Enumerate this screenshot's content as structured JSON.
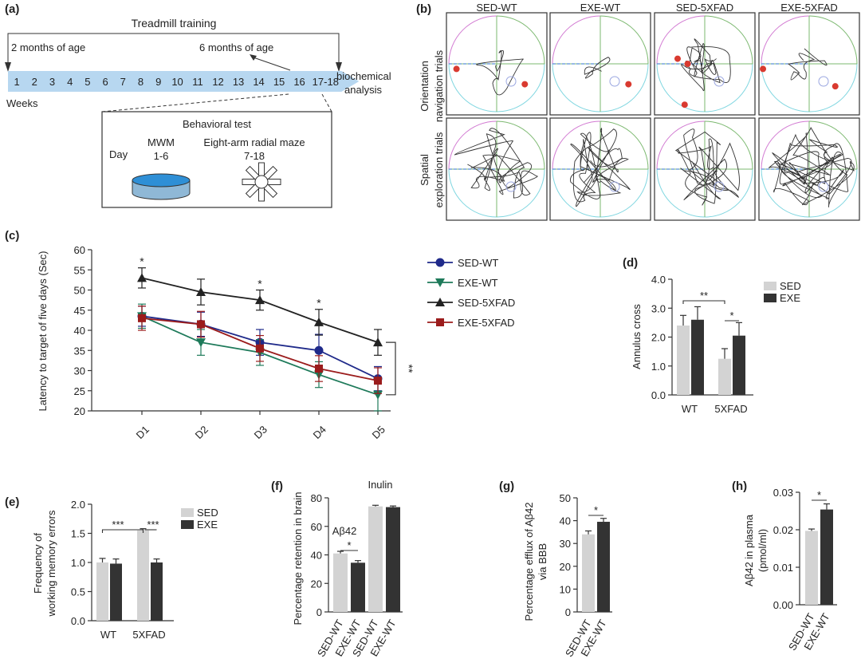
{
  "panel_a": {
    "label": "(a)",
    "title": "Treadmill training",
    "note_2m": "2 months of age",
    "note_6m": "6 months of age",
    "weeks": [
      "1",
      "2",
      "3",
      "4",
      "5",
      "6",
      "7",
      "8",
      "9",
      "10",
      "11",
      "12",
      "13",
      "14",
      "15",
      "16",
      "17-18"
    ],
    "weeks_label": "Weeks",
    "end_label_1": "biochemical",
    "end_label_2": "analysis",
    "box_title": "Behavioral test",
    "day_label": "Day",
    "mwm_label": "MWM",
    "mwm_days": "1-6",
    "maze_label": "Eight-arm radial maze",
    "maze_days": "7-18",
    "colors": {
      "week_fill": "#b7d7f0",
      "pool_water": "#2e8fd6"
    }
  },
  "panel_b": {
    "label": "(b)",
    "columns": [
      "SED-WT",
      "EXE-WT",
      "SED-5XFAD",
      "EXE-5XFAD"
    ],
    "rows": [
      {
        "line1": "Orientation",
        "line2": "navigation trials"
      },
      {
        "line1": "Spatial",
        "line2": "exploration trials"
      }
    ],
    "colors": {
      "dot": "#d93a30",
      "q1": "#7bb86f",
      "q2": "#d27ad2",
      "q3": "#7fd6e0",
      "trace": "#333333"
    }
  },
  "chart_data": [
    {
      "id": "c",
      "label": "(c)",
      "type": "line",
      "ylabel": "Latency to target of five days (Sec)",
      "categories": [
        "D1",
        "D2",
        "D3",
        "D4",
        "D5"
      ],
      "ylim": [
        20,
        60
      ],
      "yticks": [
        20,
        25,
        30,
        35,
        40,
        45,
        50,
        55,
        60
      ],
      "series": [
        {
          "name": "SED-WT",
          "color": "#1f2a8a",
          "marker": "circle",
          "values": [
            43.5,
            41.5,
            37,
            35,
            28
          ],
          "err": [
            2.5,
            3,
            3.2,
            4,
            3
          ]
        },
        {
          "name": "EXE-WT",
          "color": "#1e7a5a",
          "marker": "triangle-down",
          "values": [
            43.5,
            37,
            34.5,
            29,
            24
          ],
          "err": [
            3,
            3.2,
            3.2,
            3.2,
            4
          ]
        },
        {
          "name": "SED-5XFAD",
          "color": "#222222",
          "marker": "triangle-up",
          "values": [
            53,
            49.5,
            47.5,
            42,
            37
          ],
          "err": [
            2.5,
            3.2,
            2.5,
            3.2,
            3.2
          ]
        },
        {
          "name": "EXE-5XFAD",
          "color": "#9b1c1c",
          "marker": "square",
          "values": [
            43,
            41.5,
            35.5,
            30.5,
            27.5
          ],
          "err": [
            3,
            3.2,
            3.2,
            3.2,
            3.2
          ]
        }
      ],
      "annotations": [
        {
          "text": "*",
          "at": "D1"
        },
        {
          "text": "*",
          "at": "D3"
        },
        {
          "text": "*",
          "at": "D4"
        },
        {
          "text": "**",
          "at": "D5-bracket"
        }
      ],
      "legend": "top-right"
    },
    {
      "id": "d",
      "label": "(d)",
      "type": "bar",
      "ylabel": "Annulus cross",
      "categories": [
        "WT",
        "5XFAD"
      ],
      "ylim": [
        0,
        4
      ],
      "yticks": [
        "0.0",
        "1.0",
        "2.0",
        "3.0",
        "4.0"
      ],
      "series": [
        {
          "name": "SED",
          "color": "#d3d3d3",
          "values": [
            2.4,
            1.25
          ],
          "err": [
            0.35,
            0.35
          ]
        },
        {
          "name": "EXE",
          "color": "#333333",
          "values": [
            2.6,
            2.05
          ],
          "err": [
            0.45,
            0.45
          ]
        }
      ],
      "sig": [
        {
          "text": "**",
          "span": "WT-SED to 5XFAD-SED"
        },
        {
          "text": "*",
          "span": "5XFAD"
        }
      ],
      "legend": "top-right"
    },
    {
      "id": "e",
      "label": "(e)",
      "type": "bar",
      "ylabel_line1": "Frequency of",
      "ylabel_line2": "working memory errors",
      "categories": [
        "WT",
        "5XFAD"
      ],
      "ylim": [
        0,
        2
      ],
      "yticks": [
        "0.0",
        "0.5",
        "1.0",
        "1.5",
        "2.0"
      ],
      "series": [
        {
          "name": "SED",
          "color": "#d3d3d3",
          "values": [
            1.0,
            1.55
          ],
          "err": [
            0.07,
            0.03
          ]
        },
        {
          "name": "EXE",
          "color": "#333333",
          "values": [
            0.98,
            1.0
          ],
          "err": [
            0.08,
            0.06
          ]
        }
      ],
      "sig": [
        {
          "text": "***",
          "span": "WT-SED to 5XFAD-SED"
        },
        {
          "text": "***",
          "span": "5XFAD"
        }
      ],
      "legend": "top-right"
    },
    {
      "id": "f",
      "label": "(f)",
      "type": "bar",
      "ylabel": "Percentage retention in brain",
      "categories": [
        "SED-WT",
        "EXE-WT",
        "SED-WT",
        "EXE-WT"
      ],
      "groups": [
        "Aβ42",
        "Inulin"
      ],
      "ylim": [
        0,
        80
      ],
      "yticks": [
        "0",
        "20",
        "40",
        "60",
        "80"
      ],
      "values": [
        41,
        34.5,
        74,
        73.5
      ],
      "err": [
        1.5,
        1.5,
        0.8,
        0.8
      ],
      "colors": [
        "#d3d3d3",
        "#333333",
        "#d3d3d3",
        "#333333"
      ],
      "sig": [
        {
          "text": "*",
          "span": "Aβ42"
        }
      ]
    },
    {
      "id": "g",
      "label": "(g)",
      "type": "bar",
      "ylabel_line1": "Percentage efflux of Aβ42",
      "ylabel_line2": "via BBB",
      "categories": [
        "SED-WT",
        "EXE-WT"
      ],
      "ylim": [
        0,
        50
      ],
      "yticks": [
        "0",
        "10",
        "20",
        "30",
        "40",
        "50"
      ],
      "values": [
        34,
        39.5
      ],
      "err": [
        1.5,
        1.5
      ],
      "colors": [
        "#d3d3d3",
        "#333333"
      ],
      "sig": [
        {
          "text": "*"
        }
      ]
    },
    {
      "id": "h",
      "label": "(h)",
      "type": "bar",
      "ylabel_line1": "Aβ42 in plasma",
      "ylabel_line2": "(pmol/ml)",
      "categories": [
        "SED-WT",
        "EXE-WT"
      ],
      "ylim": [
        0,
        0.03
      ],
      "yticks": [
        "0.00",
        "0.01",
        "0.02",
        "0.03"
      ],
      "values": [
        0.0197,
        0.0254
      ],
      "err": [
        0.0005,
        0.0015
      ],
      "colors": [
        "#d3d3d3",
        "#333333"
      ],
      "sig": [
        {
          "text": "*"
        }
      ]
    }
  ]
}
